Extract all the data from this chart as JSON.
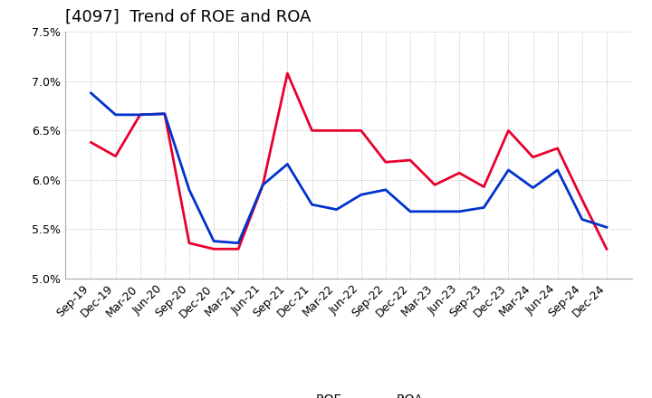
{
  "title": "[4097]  Trend of ROE and ROA",
  "labels": [
    "Sep-19",
    "Dec-19",
    "Mar-20",
    "Jun-20",
    "Sep-20",
    "Dec-20",
    "Mar-21",
    "Jun-21",
    "Sep-21",
    "Dec-21",
    "Mar-22",
    "Jun-22",
    "Sep-22",
    "Dec-22",
    "Mar-23",
    "Jun-23",
    "Sep-23",
    "Dec-23",
    "Mar-24",
    "Jun-24",
    "Sep-24",
    "Dec-24"
  ],
  "ROE": [
    6.38,
    6.24,
    6.66,
    6.67,
    5.36,
    5.3,
    5.3,
    5.95,
    7.08,
    6.5,
    6.5,
    6.5,
    6.18,
    6.2,
    5.95,
    6.07,
    5.93,
    6.5,
    6.23,
    6.32,
    5.8,
    5.3
  ],
  "ROA": [
    6.88,
    6.66,
    6.66,
    6.67,
    5.9,
    5.38,
    5.36,
    5.95,
    6.16,
    5.75,
    5.7,
    5.85,
    5.9,
    5.68,
    5.68,
    5.68,
    5.72,
    6.1,
    5.92,
    6.1,
    5.6,
    5.52
  ],
  "roe_color": "#e8002d",
  "roa_color": "#0033cc",
  "ylim": [
    5.0,
    7.5
  ],
  "yticks": [
    5.0,
    5.5,
    6.0,
    6.5,
    7.0,
    7.5
  ],
  "background_color": "#ffffff",
  "grid_color": "#aaaaaa",
  "line_width": 2.0,
  "title_fontsize": 13,
  "tick_fontsize": 9,
  "legend_fontsize": 10
}
